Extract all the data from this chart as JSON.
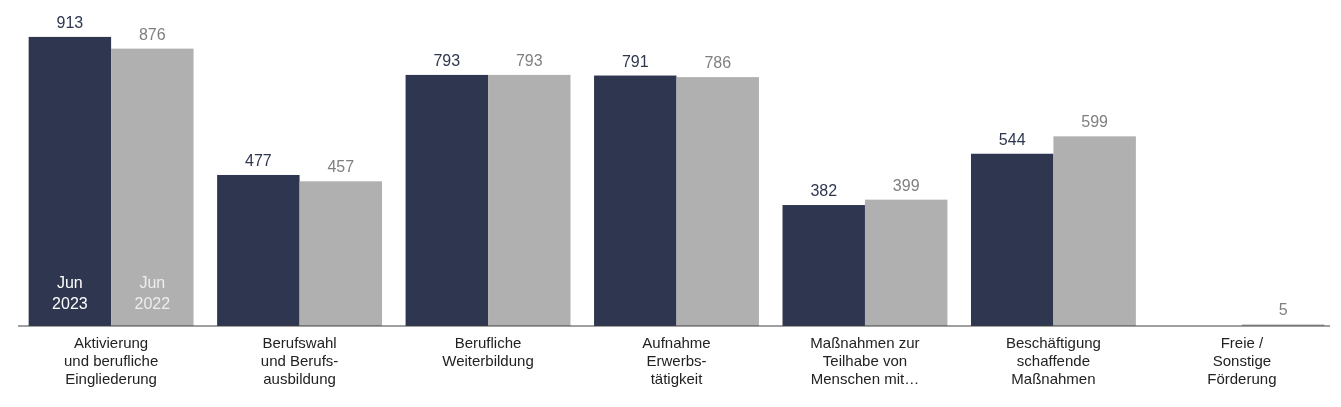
{
  "chart_data": {
    "type": "bar",
    "categories": [
      "Aktivierung\nund berufliche\nEingliederung",
      "Berufswahl\nund Berufs-\nausbildung",
      "Berufliche\nWeiterbildung",
      "Aufnahme\nErwerbs-\ntätigkeit",
      "Maßnahmen zur\nTeilhabe von\nMenschen mit…",
      "Beschäftigung\nschaffende\nMaßnahmen",
      "Freie /\nSonstige\nFörderung"
    ],
    "series": [
      {
        "name": "Jun 2023",
        "color": "#2e374f",
        "values": [
          913,
          477,
          793,
          791,
          382,
          544,
          null
        ]
      },
      {
        "name": "Jun 2022",
        "color": "#b0b0b0",
        "values": [
          876,
          457,
          793,
          786,
          399,
          599,
          5
        ]
      }
    ],
    "data_labels": true
  }
}
